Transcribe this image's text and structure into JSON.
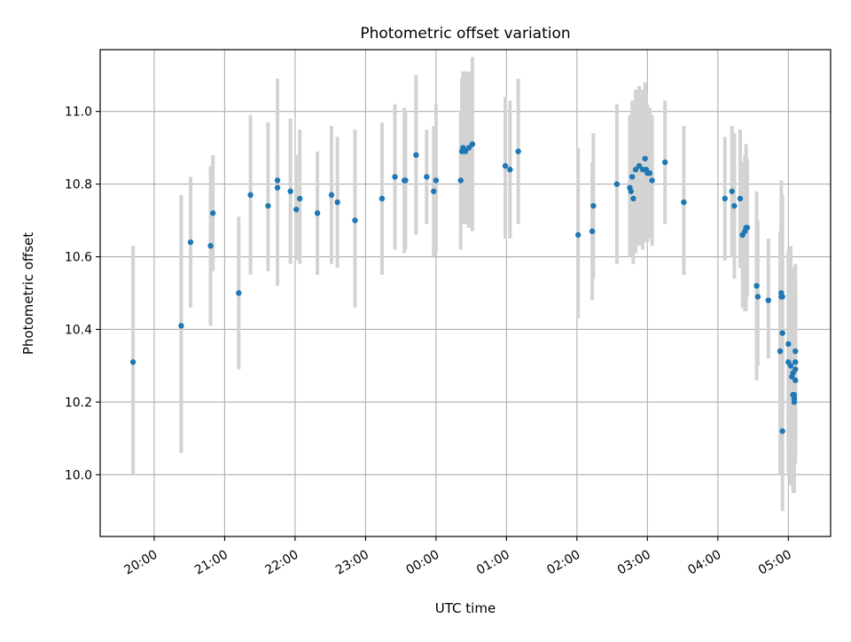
{
  "chart_data": {
    "type": "scatter",
    "title": "Photometric offset variation",
    "xlabel": "UTC time",
    "ylabel": "Photometric offset",
    "x_unit": "UTC time (HH:MM), night spanning midnight",
    "xlim": [
      "19:14",
      "05:36"
    ],
    "ylim": [
      9.83,
      11.17
    ],
    "grid": true,
    "legend": "none",
    "colors": {
      "marker": "#1f77b4",
      "errorbar": "#d3d3d3",
      "grid": "#b0b0b0"
    },
    "x_ticks": [
      "20:00",
      "21:00",
      "22:00",
      "23:00",
      "00:00",
      "01:00",
      "02:00",
      "03:00",
      "04:00",
      "05:00"
    ],
    "y_ticks": [
      "10.0",
      "10.2",
      "10.4",
      "10.6",
      "10.8",
      "11.0"
    ],
    "series": [
      {
        "x": [
          "19:42",
          "20:23",
          "20:31",
          "20:48",
          "20:50",
          "21:12",
          "21:22",
          "21:37",
          "21:45",
          "21:45",
          "21:56",
          "22:01",
          "22:04",
          "22:19",
          "22:31",
          "22:36",
          "22:51",
          "23:14",
          "23:25",
          "23:33",
          "23:34",
          "23:43",
          "23:52",
          "23:58",
          "24:00",
          "24:21",
          "24:22",
          "24:23",
          "24:25",
          "24:28",
          "24:31",
          "24:59",
          "25:03",
          "25:10",
          "26:01",
          "26:13",
          "26:14",
          "26:34",
          "26:45",
          "26:46",
          "26:47",
          "26:48",
          "26:50",
          "26:53",
          "26:56",
          "26:58",
          "26:59",
          "27:00",
          "27:02",
          "27:04",
          "27:15",
          "27:31",
          "28:06",
          "28:12",
          "28:14",
          "28:19",
          "28:21",
          "28:23",
          "28:24",
          "28:25",
          "28:33",
          "28:34",
          "28:43",
          "28:53",
          "28:54",
          "28:54",
          "28:55",
          "28:55",
          "28:55",
          "29:00",
          "29:00",
          "29:02",
          "29:03",
          "29:04",
          "29:04",
          "29:05",
          "29:05",
          "29:05",
          "29:06",
          "29:06",
          "29:06",
          "29:06"
        ],
        "y": [
          10.31,
          10.41,
          10.64,
          10.63,
          10.72,
          10.5,
          10.77,
          10.74,
          10.81,
          10.79,
          10.78,
          10.73,
          10.76,
          10.72,
          10.77,
          10.75,
          10.7,
          10.76,
          10.82,
          10.81,
          10.81,
          10.88,
          10.82,
          10.78,
          10.81,
          10.81,
          10.89,
          10.9,
          10.89,
          10.9,
          10.91,
          10.85,
          10.84,
          10.89,
          10.66,
          10.67,
          10.74,
          10.8,
          10.79,
          10.78,
          10.82,
          10.76,
          10.84,
          10.85,
          10.84,
          10.87,
          10.84,
          10.83,
          10.83,
          10.81,
          10.86,
          10.75,
          10.76,
          10.78,
          10.74,
          10.76,
          10.66,
          10.67,
          10.68,
          10.68,
          10.52,
          10.49,
          10.48,
          10.34,
          10.49,
          10.5,
          10.49,
          10.39,
          10.12,
          10.36,
          10.31,
          10.3,
          10.27,
          10.28,
          10.22,
          10.22,
          10.21,
          10.2,
          10.26,
          10.29,
          10.31,
          10.34
        ],
        "err_low": [
          10.0,
          10.06,
          10.46,
          10.41,
          10.56,
          10.29,
          10.55,
          10.56,
          10.52,
          10.69,
          10.58,
          10.59,
          10.58,
          10.55,
          10.58,
          10.57,
          10.46,
          10.55,
          10.62,
          10.61,
          10.62,
          10.66,
          10.69,
          10.6,
          10.61,
          10.62,
          10.69,
          10.71,
          10.69,
          10.68,
          10.67,
          10.65,
          10.65,
          10.69,
          10.43,
          10.48,
          10.54,
          10.58,
          10.6,
          10.6,
          10.61,
          10.58,
          10.61,
          10.63,
          10.62,
          10.67,
          10.64,
          10.64,
          10.65,
          10.63,
          10.69,
          10.55,
          10.59,
          10.6,
          10.54,
          10.57,
          10.46,
          10.45,
          10.45,
          10.49,
          10.26,
          10.3,
          10.32,
          10.0,
          10.17,
          10.29,
          10.2,
          10.18,
          9.9,
          10.08,
          10.0,
          9.97,
          9.98,
          9.99,
          9.95,
          9.95,
          9.96,
          9.98,
          10.03,
          10.04,
          10.06,
          10.1
        ],
        "err_high": [
          10.63,
          10.77,
          10.82,
          10.85,
          10.88,
          10.71,
          10.99,
          10.97,
          11.09,
          10.89,
          10.98,
          10.88,
          10.95,
          10.89,
          10.96,
          10.93,
          10.95,
          10.97,
          11.02,
          11.01,
          11.0,
          11.1,
          10.95,
          10.96,
          11.02,
          11.0,
          11.09,
          11.11,
          11.11,
          11.11,
          11.15,
          11.04,
          11.03,
          11.09,
          10.9,
          10.86,
          10.94,
          11.02,
          10.99,
          10.97,
          11.03,
          10.94,
          11.06,
          11.07,
          11.06,
          11.08,
          11.05,
          11.02,
          11.01,
          10.99,
          11.03,
          10.96,
          10.93,
          10.96,
          10.94,
          10.95,
          10.86,
          10.88,
          10.91,
          10.87,
          10.78,
          10.7,
          10.65,
          10.67,
          10.81,
          10.71,
          10.77,
          10.6,
          10.34,
          10.61,
          10.62,
          10.63,
          10.56,
          10.57,
          10.49,
          10.48,
          10.46,
          10.42,
          10.49,
          10.54,
          10.57,
          10.58
        ]
      }
    ]
  }
}
